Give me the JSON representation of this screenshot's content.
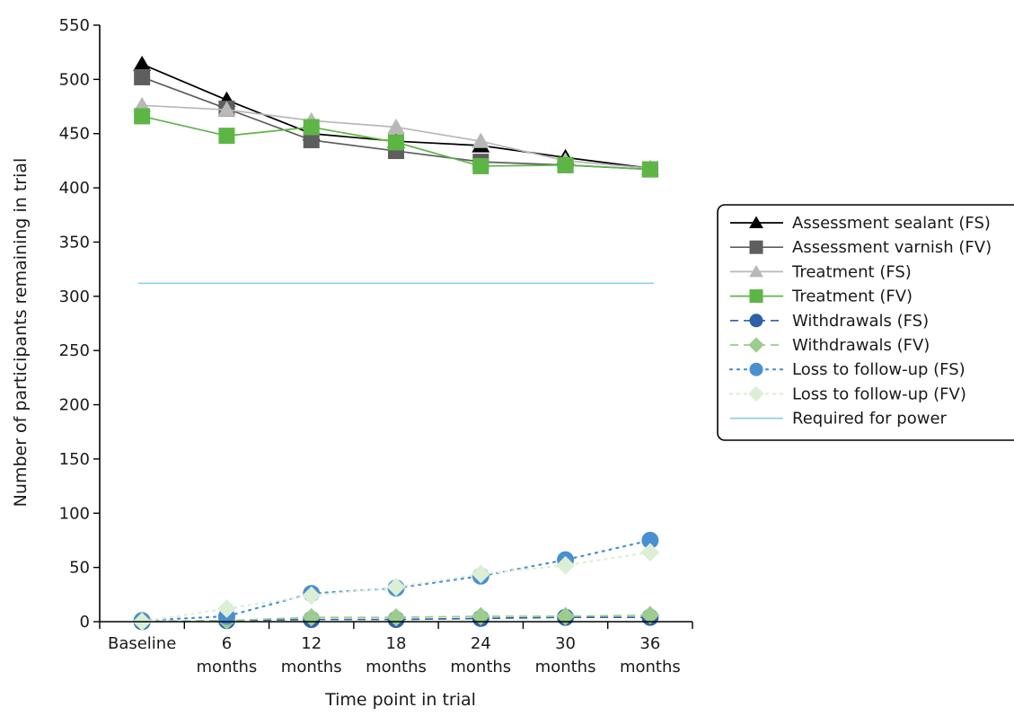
{
  "chart_data": {
    "type": "line",
    "title": "",
    "xlabel": "Time point in trial",
    "ylabel": "Number of participants remaining in trial",
    "ylim": [
      0,
      550
    ],
    "yticks": [
      0,
      50,
      100,
      150,
      200,
      250,
      300,
      350,
      400,
      450,
      500,
      550
    ],
    "categories": [
      [
        "Baseline"
      ],
      [
        "6",
        "months"
      ],
      [
        "12",
        "months"
      ],
      [
        "18",
        "months"
      ],
      [
        "24",
        "months"
      ],
      [
        "30",
        "months"
      ],
      [
        "36",
        "months"
      ]
    ],
    "legend_position": "right",
    "grid": false,
    "series": [
      {
        "name": "Assessment sealant (FS)",
        "values": [
          514,
          481,
          450,
          443,
          439,
          428,
          418
        ],
        "color": "#000000",
        "marker": "triangle",
        "dash": "solid"
      },
      {
        "name": "Assessment varnish (FV)",
        "values": [
          502,
          473,
          444,
          434,
          424,
          421,
          417
        ],
        "color": "#5e5e5e",
        "marker": "square",
        "dash": "solid"
      },
      {
        "name": "Treatment (FS)",
        "values": [
          476,
          472,
          462,
          456,
          443,
          425,
          418
        ],
        "color": "#b8b8b8",
        "marker": "triangle",
        "dash": "solid"
      },
      {
        "name": "Treatment (FV)",
        "values": [
          466,
          448,
          456,
          442,
          420,
          421,
          417
        ],
        "color": "#5db546",
        "marker": "square",
        "dash": "solid"
      },
      {
        "name": "Withdrawals (FS)",
        "values": [
          0,
          1,
          2,
          2,
          3,
          4,
          4
        ],
        "color": "#2f5fa8",
        "marker": "circle",
        "dash": "dashed"
      },
      {
        "name": "Withdrawals (FV)",
        "values": [
          0,
          1,
          4,
          4,
          5,
          5,
          6
        ],
        "color": "#9ccc8e",
        "marker": "diamond",
        "dash": "dashed"
      },
      {
        "name": "Loss to follow-up (FS)",
        "values": [
          1,
          5,
          26,
          31,
          42,
          57,
          75
        ],
        "color": "#4a8fd0",
        "marker": "circle",
        "dash": "dotted"
      },
      {
        "name": "Loss to follow-up (FV)",
        "values": [
          0,
          12,
          24,
          32,
          44,
          52,
          64
        ],
        "color": "#dcefd4",
        "marker": "diamond",
        "dash": "dotted"
      },
      {
        "name": "Required for power",
        "values": [
          312,
          312,
          312,
          312,
          312,
          312,
          312
        ],
        "color": "#8ed1e6",
        "marker": "none",
        "dash": "solid"
      }
    ]
  }
}
